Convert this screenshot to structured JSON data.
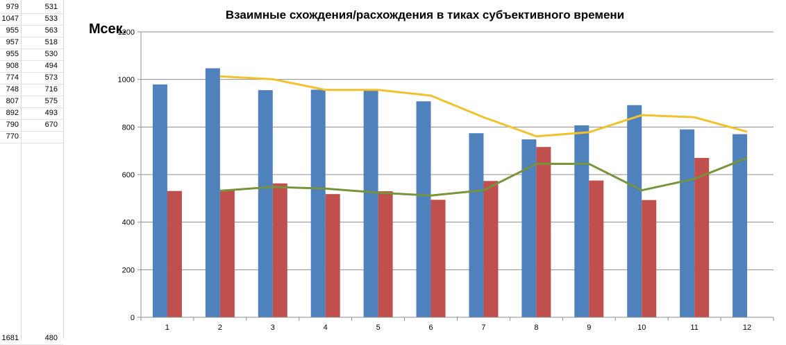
{
  "spreadsheet": {
    "rows": [
      {
        "a": "979",
        "b": "531"
      },
      {
        "a": "1047",
        "b": "533"
      },
      {
        "a": "955",
        "b": "563"
      },
      {
        "a": "957",
        "b": "518"
      },
      {
        "a": "955",
        "b": "530"
      },
      {
        "a": "908",
        "b": "494"
      },
      {
        "a": "774",
        "b": "573"
      },
      {
        "a": "748",
        "b": "716"
      },
      {
        "a": "807",
        "b": "575"
      },
      {
        "a": "892",
        "b": "493"
      },
      {
        "a": "790",
        "b": "670"
      },
      {
        "a": "770",
        "b": ""
      }
    ],
    "bottom_row": {
      "a": "1681",
      "b": "480"
    }
  },
  "chart_data": {
    "type": "bar",
    "title": "Взаимные схождения/расхождения в тиках субъективного времени",
    "ylabel": "Мсек.",
    "xlabel": "",
    "categories": [
      "1",
      "2",
      "3",
      "4",
      "5",
      "6",
      "7",
      "8",
      "9",
      "10",
      "11",
      "12"
    ],
    "ylim": [
      0,
      1200
    ],
    "yticks": [
      "0",
      "200",
      "400",
      "600",
      "800",
      "1000",
      "1200"
    ],
    "grid": true,
    "series": [
      {
        "type": "bar",
        "color": "#4F81BD",
        "values": [
          979,
          1047,
          955,
          957,
          955,
          908,
          774,
          748,
          807,
          892,
          790,
          770
        ]
      },
      {
        "type": "bar",
        "color": "#C0504D",
        "values": [
          531,
          533,
          563,
          518,
          530,
          494,
          573,
          716,
          575,
          493,
          670,
          null
        ]
      },
      {
        "type": "line",
        "color": "#F2C12E",
        "values": [
          null,
          1013,
          1001,
          956,
          956,
          932,
          841,
          761,
          778,
          850,
          841,
          780
        ]
      },
      {
        "type": "line",
        "color": "#77933C",
        "values": [
          null,
          532,
          548,
          541,
          524,
          512,
          534,
          645,
          645,
          534,
          582,
          670
        ]
      }
    ]
  }
}
